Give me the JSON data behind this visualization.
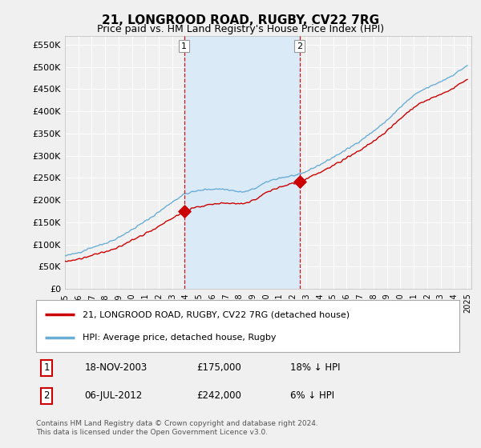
{
  "title": "21, LONGROOD ROAD, RUGBY, CV22 7RG",
  "subtitle": "Price paid vs. HM Land Registry's House Price Index (HPI)",
  "ylim": [
    0,
    570000
  ],
  "yticks": [
    0,
    50000,
    100000,
    150000,
    200000,
    250000,
    300000,
    350000,
    400000,
    450000,
    500000,
    550000
  ],
  "ytick_labels": [
    "£0",
    "£50K",
    "£100K",
    "£150K",
    "£200K",
    "£250K",
    "£300K",
    "£350K",
    "£400K",
    "£450K",
    "£500K",
    "£550K"
  ],
  "hpi_color": "#6aaed6",
  "price_color": "#cc0000",
  "shade_color": "#daeaf7",
  "point1_year_f": 2003.88,
  "point1_price": 175000,
  "point2_year_f": 2012.5,
  "point2_price": 242000,
  "dashed_line_color": "#cc0000",
  "background_color": "#f0f0f0",
  "plot_bg_color": "#f0f0f0",
  "grid_color": "#ffffff",
  "legend_label_price": "21, LONGROOD ROAD, RUGBY, CV22 7RG (detached house)",
  "legend_label_hpi": "HPI: Average price, detached house, Rugby",
  "table_rows": [
    [
      "1",
      "18-NOV-2003",
      "£175,000",
      "18% ↓ HPI"
    ],
    [
      "2",
      "06-JUL-2012",
      "£242,000",
      "6% ↓ HPI"
    ]
  ],
  "footnote": "Contains HM Land Registry data © Crown copyright and database right 2024.\nThis data is licensed under the Open Government Licence v3.0.",
  "title_fontsize": 11,
  "subtitle_fontsize": 9,
  "tick_fontsize": 8
}
